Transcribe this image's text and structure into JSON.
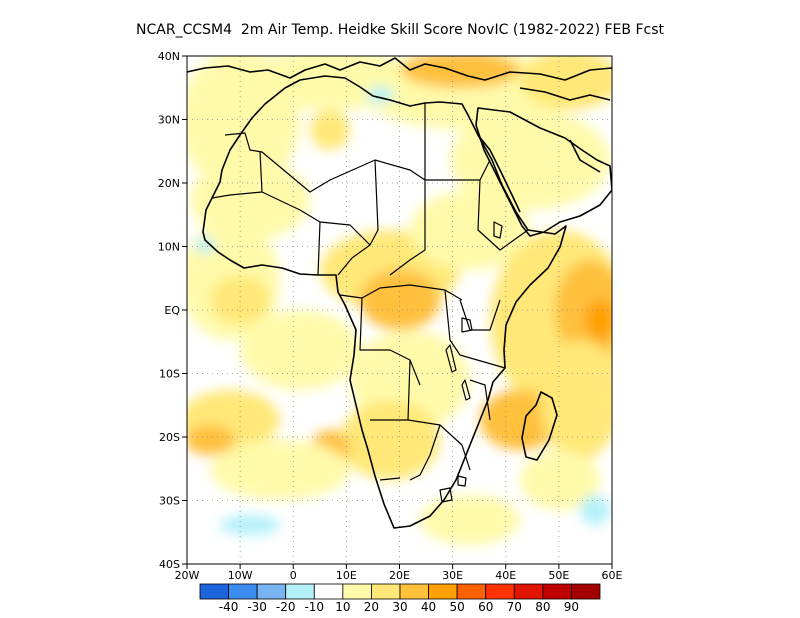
{
  "title": "NCAR_CCSM4  2m Air Temp. Heidke Skill Score NovIC (1982-2022) FEB Fcst",
  "map": {
    "lat_ticks": [
      {
        "label": "40N",
        "value": 40
      },
      {
        "label": "30N",
        "value": 30
      },
      {
        "label": "20N",
        "value": 20
      },
      {
        "label": "10N",
        "value": 10
      },
      {
        "label": "EQ",
        "value": 0
      },
      {
        "label": "10S",
        "value": -10
      },
      {
        "label": "20S",
        "value": -20
      },
      {
        "label": "30S",
        "value": -30
      },
      {
        "label": "40S",
        "value": -40
      }
    ],
    "lon_ticks": [
      {
        "label": "20W",
        "value": -20
      },
      {
        "label": "10W",
        "value": -10
      },
      {
        "label": "0",
        "value": 0
      },
      {
        "label": "10E",
        "value": 10
      },
      {
        "label": "20E",
        "value": 20
      },
      {
        "label": "30E",
        "value": 30
      },
      {
        "label": "40E",
        "value": 40
      },
      {
        "label": "50E",
        "value": 50
      },
      {
        "label": "60E",
        "value": 60
      }
    ],
    "lon_range": [
      -20,
      60
    ],
    "lat_range": [
      -40,
      40
    ]
  },
  "colorbar": {
    "colors": [
      "#1e64dc",
      "#3c8cf0",
      "#78b4f0",
      "#b4f0fa",
      "#ffffff",
      "#fffaaa",
      "#ffe878",
      "#ffc03c",
      "#ffa000",
      "#ff6000",
      "#ff3200",
      "#e11400",
      "#c00000",
      "#a50000"
    ],
    "labels": [
      "-40",
      "-30",
      "-20",
      "-10",
      "10",
      "20",
      "30",
      "40",
      "50",
      "60",
      "70",
      "80",
      "90"
    ]
  }
}
